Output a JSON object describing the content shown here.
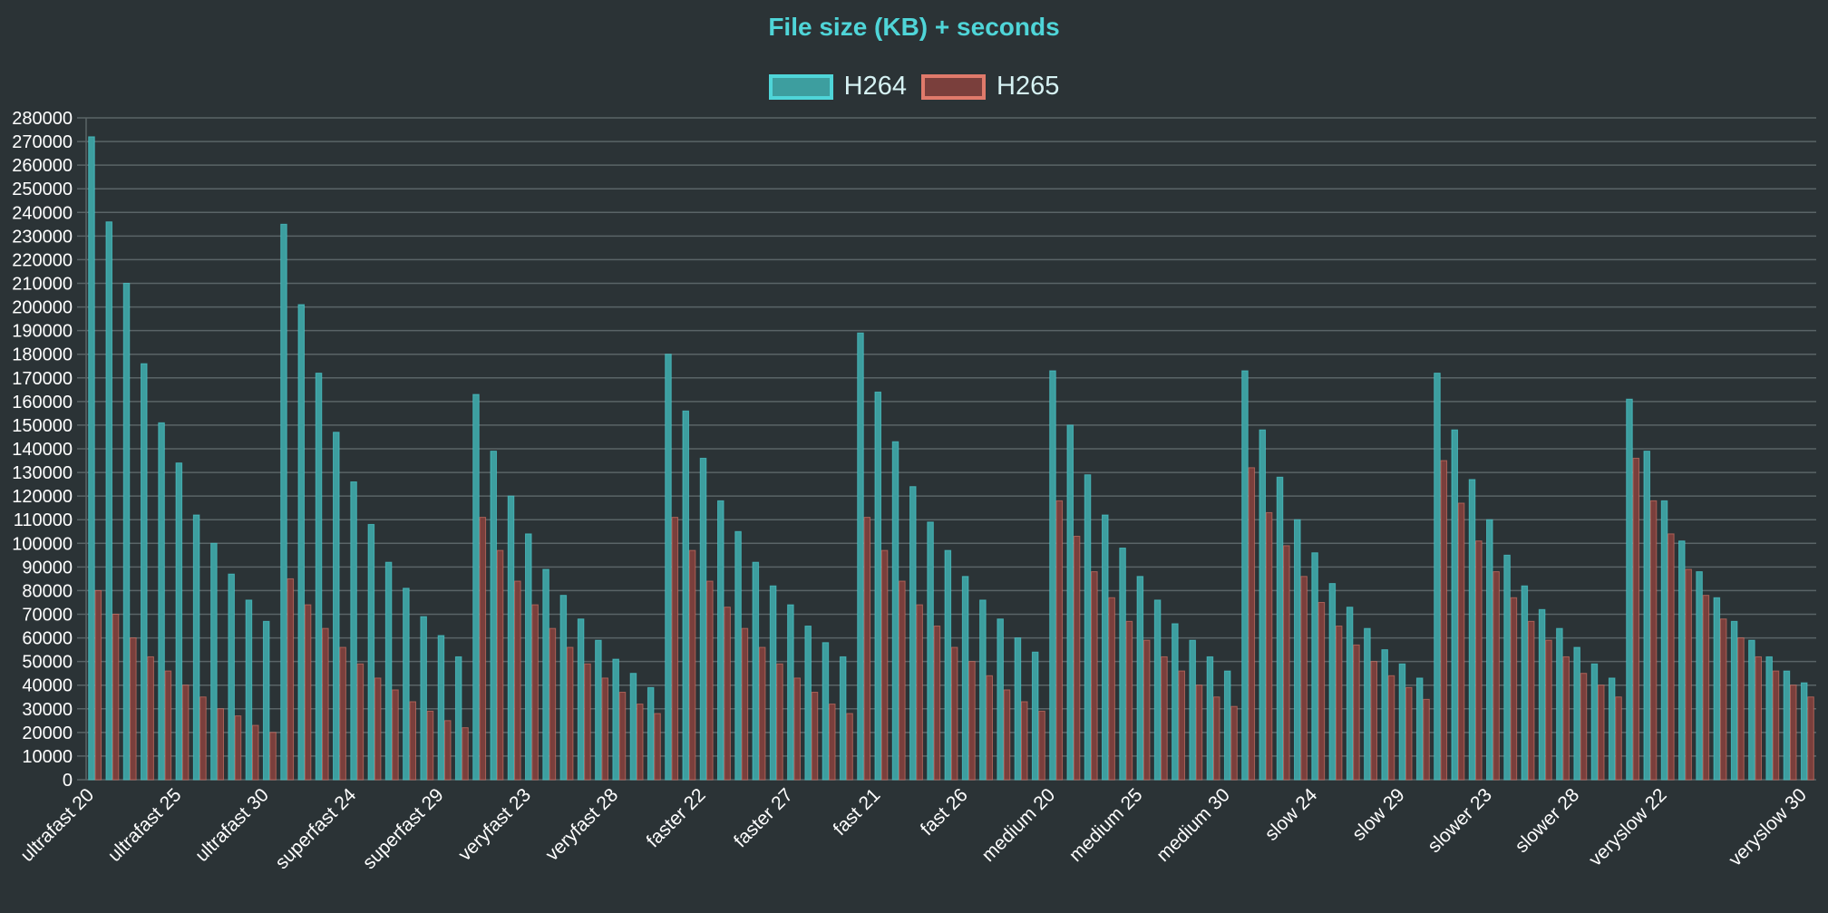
{
  "chart_data": {
    "type": "bar",
    "title": "File size (KB) + seconds",
    "xlabel": "",
    "ylabel": "",
    "ylim": [
      0,
      280000
    ],
    "y_step": 10000,
    "grid": true,
    "legend_position": "top-center",
    "categories": [
      "ultrafast 20",
      "ultrafast 21",
      "ultrafast 22",
      "ultrafast 23",
      "ultrafast 24",
      "ultrafast 25",
      "ultrafast 26",
      "ultrafast 27",
      "ultrafast 28",
      "ultrafast 29",
      "ultrafast 30",
      "superfast 20",
      "superfast 21",
      "superfast 22",
      "superfast 23",
      "superfast 24",
      "superfast 25",
      "superfast 26",
      "superfast 27",
      "superfast 28",
      "superfast 29",
      "superfast 30",
      "veryfast 20",
      "veryfast 21",
      "veryfast 22",
      "veryfast 23",
      "veryfast 24",
      "veryfast 25",
      "veryfast 26",
      "veryfast 27",
      "veryfast 28",
      "veryfast 29",
      "veryfast 30",
      "faster 20",
      "faster 21",
      "faster 22",
      "faster 23",
      "faster 24",
      "faster 25",
      "faster 26",
      "faster 27",
      "faster 28",
      "faster 29",
      "faster 30",
      "fast 20",
      "fast 21",
      "fast 22",
      "fast 23",
      "fast 24",
      "fast 25",
      "fast 26",
      "fast 27",
      "fast 28",
      "fast 29",
      "fast 30",
      "medium 20",
      "medium 21",
      "medium 22",
      "medium 23",
      "medium 24",
      "medium 25",
      "medium 26",
      "medium 27",
      "medium 28",
      "medium 29",
      "medium 30",
      "slow 20",
      "slow 21",
      "slow 22",
      "slow 23",
      "slow 24",
      "slow 25",
      "slow 26",
      "slow 27",
      "slow 28",
      "slow 29",
      "slow 30",
      "slower 20",
      "slower 21",
      "slower 22",
      "slower 23",
      "slower 24",
      "slower 25",
      "slower 26",
      "slower 27",
      "slower 28",
      "slower 29",
      "slower 30",
      "veryslow 20",
      "veryslow 21",
      "veryslow 22",
      "veryslow 23",
      "veryslow 24",
      "veryslow 25",
      "veryslow 26",
      "veryslow 27",
      "veryslow 28",
      "veryslow 29",
      "veryslow 30"
    ],
    "visible_x_labels": [
      "ultrafast 20",
      "ultrafast 25",
      "ultrafast 30",
      "superfast 24",
      "superfast 29",
      "veryfast 23",
      "veryfast 28",
      "faster 22",
      "faster 27",
      "fast 21",
      "fast 26",
      "medium 20",
      "medium 25",
      "medium 30",
      "slow 24",
      "slow 29",
      "slower 23",
      "slower 28",
      "veryslow 22",
      "veryslow 30"
    ],
    "series": [
      {
        "name": "H264",
        "color": "#3d9e9f",
        "border": "#4fd5d8",
        "values": [
          272000,
          236000,
          210000,
          176000,
          151000,
          134000,
          112000,
          100000,
          87000,
          76000,
          67000,
          235000,
          201000,
          172000,
          147000,
          126000,
          108000,
          92000,
          81000,
          69000,
          61000,
          52000,
          163000,
          139000,
          120000,
          104000,
          89000,
          78000,
          68000,
          59000,
          51000,
          45000,
          39000,
          180000,
          156000,
          136000,
          118000,
          105000,
          92000,
          82000,
          74000,
          65000,
          58000,
          52000,
          189000,
          164000,
          143000,
          124000,
          109000,
          97000,
          86000,
          76000,
          68000,
          60000,
          54000,
          173000,
          150000,
          129000,
          112000,
          98000,
          86000,
          76000,
          66000,
          59000,
          52000,
          46000,
          173000,
          148000,
          128000,
          110000,
          96000,
          83000,
          73000,
          64000,
          55000,
          49000,
          43000,
          172000,
          148000,
          127000,
          110000,
          95000,
          82000,
          72000,
          64000,
          56000,
          49000,
          43000,
          161000,
          139000,
          118000,
          101000,
          88000,
          77000,
          67000,
          59000,
          52000,
          46000,
          41000
        ]
      },
      {
        "name": "H265",
        "color": "#7a3f3c",
        "border": "#e07a6b",
        "values": [
          80000,
          70000,
          60000,
          52000,
          46000,
          40000,
          35000,
          30000,
          27000,
          23000,
          20000,
          85000,
          74000,
          64000,
          56000,
          49000,
          43000,
          38000,
          33000,
          29000,
          25000,
          22000,
          111000,
          97000,
          84000,
          74000,
          64000,
          56000,
          49000,
          43000,
          37000,
          32000,
          28000,
          111000,
          97000,
          84000,
          73000,
          64000,
          56000,
          49000,
          43000,
          37000,
          32000,
          28000,
          111000,
          97000,
          84000,
          74000,
          65000,
          56000,
          50000,
          44000,
          38000,
          33000,
          29000,
          118000,
          103000,
          88000,
          77000,
          67000,
          59000,
          52000,
          46000,
          40000,
          35000,
          31000,
          132000,
          113000,
          99000,
          86000,
          75000,
          65000,
          57000,
          50000,
          44000,
          39000,
          34000,
          135000,
          117000,
          101000,
          88000,
          77000,
          67000,
          59000,
          52000,
          45000,
          40000,
          35000,
          136000,
          118000,
          104000,
          89000,
          78000,
          68000,
          60000,
          52000,
          46000,
          40000,
          35000
        ]
      }
    ]
  }
}
